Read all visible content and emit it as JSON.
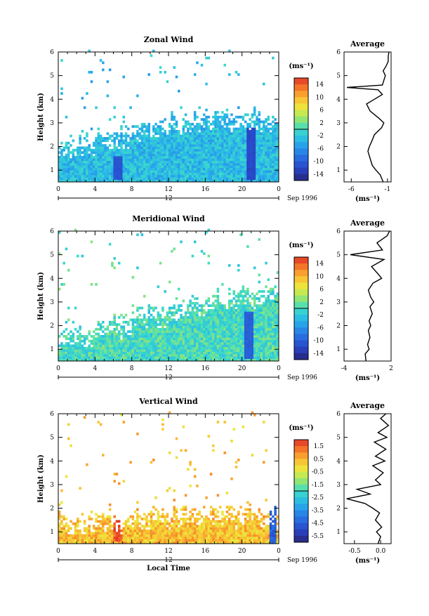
{
  "figure": {
    "date_label": "Sep 1996",
    "day_label": "12",
    "xlabel": "Local Time",
    "ylabel": "Height (km)",
    "unit_label": "(ms⁻¹)",
    "avg_title": "Average"
  },
  "chart_data": [
    {
      "type": "heatmap",
      "title": "Zonal Wind",
      "xlabel": "",
      "ylabel": "Height (km)",
      "x_ticks": [
        "0",
        "4",
        "8",
        "12",
        "16",
        "20",
        "0"
      ],
      "y_ticks": [
        "1",
        "2",
        "3",
        "4",
        "5",
        "6"
      ],
      "xlim": [
        0,
        24
      ],
      "ylim": [
        0.5,
        6
      ],
      "colorbar": {
        "label": "(ms⁻¹)",
        "ticks": [
          "14",
          "10",
          "6",
          "2",
          "-2",
          "-6",
          "-10",
          "-14"
        ],
        "range": [
          -16,
          16
        ]
      },
      "approx_field": {
        "description_units": "m/s",
        "data_top_km": [
          2.2,
          2.6,
          3.0,
          3.2,
          3.3,
          3.4,
          3.4
        ],
        "typical_value": -3,
        "features": [
          {
            "time_h": 6.5,
            "height_km": [
              0.6,
              1.6
            ],
            "value": -11
          },
          {
            "time_h": 21.0,
            "height_km": [
              0.6,
              2.8
            ],
            "value": -12
          }
        ]
      },
      "average_profile": {
        "title": "Average",
        "xlabel": "(ms⁻¹)",
        "x_ticks": [
          "-6",
          "-1"
        ],
        "xlim": [
          -7,
          -0.5
        ],
        "height_km": [
          0.5,
          0.8,
          1.0,
          1.2,
          1.5,
          1.8,
          2.0,
          2.2,
          2.5,
          2.8,
          3.0,
          3.2,
          3.5,
          3.8,
          4.0,
          4.2,
          4.4,
          4.5,
          4.6,
          4.8,
          5.0,
          5.2,
          5.4,
          5.6,
          5.8,
          6.0
        ],
        "values": [
          -1.6,
          -2.0,
          -2.6,
          -3.1,
          -3.4,
          -3.7,
          -3.5,
          -3.2,
          -2.8,
          -1.8,
          -1.5,
          -2.2,
          -3.4,
          -3.9,
          -2.8,
          -1.7,
          -2.3,
          -6.6,
          -1.7,
          -1.5,
          -1.3,
          -1.6,
          -1.2,
          -0.9,
          -0.9,
          -0.8
        ]
      }
    },
    {
      "type": "heatmap",
      "title": "Meridional Wind",
      "xlabel": "",
      "ylabel": "Height (km)",
      "x_ticks": [
        "0",
        "4",
        "8",
        "12",
        "16",
        "20",
        "0"
      ],
      "y_ticks": [
        "1",
        "2",
        "3",
        "4",
        "5",
        "6"
      ],
      "xlim": [
        0,
        24
      ],
      "ylim": [
        0.5,
        6
      ],
      "colorbar": {
        "label": "(ms⁻¹)",
        "ticks": [
          "14",
          "10",
          "6",
          "2",
          "-2",
          "-6",
          "-10",
          "-14"
        ],
        "range": [
          -16,
          16
        ]
      },
      "approx_field": {
        "description_units": "m/s",
        "data_top_km": [
          1.8,
          2.2,
          2.6,
          3.0,
          3.3,
          3.5,
          3.4
        ],
        "typical_value": 0,
        "features": [
          {
            "time_h": 20.8,
            "height_km": [
              0.6,
              2.6
            ],
            "value": -10
          }
        ]
      },
      "average_profile": {
        "title": "Average",
        "xlabel": "(ms⁻¹)",
        "x_ticks": [
          "-4",
          "2"
        ],
        "xlim": [
          -4,
          2
        ],
        "height_km": [
          0.5,
          0.8,
          1.0,
          1.2,
          1.5,
          1.8,
          2.0,
          2.2,
          2.5,
          2.8,
          3.0,
          3.2,
          3.5,
          3.8,
          4.0,
          4.2,
          4.5,
          4.8,
          5.0,
          5.2,
          5.5,
          5.8,
          6.0
        ],
        "values": [
          -1.2,
          -1.3,
          -0.8,
          -1.0,
          -0.7,
          -0.9,
          -0.6,
          -0.8,
          -0.4,
          -0.7,
          -0.2,
          -0.6,
          -0.9,
          -0.3,
          0.8,
          0.3,
          -0.5,
          1.1,
          -3.2,
          0.9,
          0.2,
          1.5,
          1.8
        ]
      }
    },
    {
      "type": "heatmap",
      "title": "Vertical Wind",
      "xlabel": "Local Time",
      "ylabel": "Height (km)",
      "x_ticks": [
        "0",
        "4",
        "8",
        "12",
        "16",
        "20",
        "0"
      ],
      "y_ticks": [
        "1",
        "2",
        "3",
        "4",
        "5",
        "6"
      ],
      "xlim": [
        0,
        24
      ],
      "ylim": [
        0.5,
        6
      ],
      "colorbar": {
        "label": "(ms⁻¹)",
        "ticks": [
          "1.5",
          "0.5",
          "-0.5",
          "-1.5",
          "-2.5",
          "-3.5",
          "-4.5",
          "-5.5"
        ],
        "range": [
          -6,
          2
        ]
      },
      "approx_field": {
        "description_units": "m/s",
        "data_top_km": [
          1.6,
          1.7,
          1.8,
          1.9,
          1.9,
          1.9,
          1.8
        ],
        "typical_value": 0.3,
        "features": [
          {
            "time_h": 6.5,
            "height_km": [
              0.6,
              1.9
            ],
            "value": 1.6
          },
          {
            "time_h": 23.4,
            "height_km": [
              0.4,
              2.2
            ],
            "value": -4.5
          }
        ]
      },
      "average_profile": {
        "title": "Average",
        "xlabel": "(ms⁻¹)",
        "x_ticks": [
          "-0.5",
          "0.0"
        ],
        "xlim": [
          -0.7,
          0.2
        ],
        "height_km": [
          0.5,
          0.8,
          1.0,
          1.2,
          1.5,
          1.8,
          2.0,
          2.2,
          2.4,
          2.6,
          2.8,
          3.0,
          3.2,
          3.5,
          3.8,
          4.0,
          4.2,
          4.5,
          4.8,
          5.0,
          5.2,
          5.5,
          5.8,
          6.0
        ],
        "values": [
          -0.05,
          0.0,
          -0.08,
          0.02,
          -0.1,
          -0.02,
          -0.15,
          -0.3,
          -0.65,
          -0.2,
          -0.45,
          0.0,
          -0.1,
          0.05,
          -0.15,
          0.08,
          -0.1,
          0.1,
          -0.12,
          0.12,
          -0.05,
          0.15,
          0.0,
          0.1
        ]
      }
    }
  ]
}
